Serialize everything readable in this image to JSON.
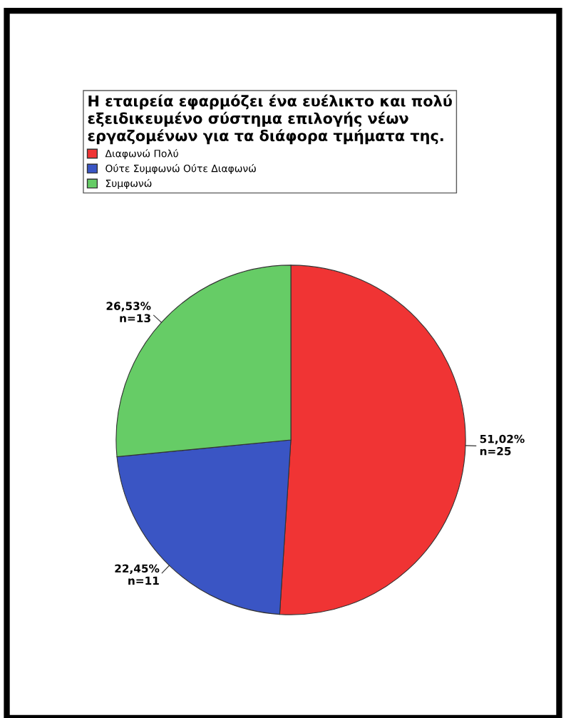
{
  "chart_data": {
    "type": "pie",
    "legend_title": "Η εταιρεία εφαρμόζει ένα ευέλικτο και πολύ\nεξειδικευμένο σύστημα επιλογής νέων\nεργαζομένων για τα διάφορα τμήματα της.",
    "categories": [
      "Διαφωνώ Πολύ",
      "Ούτε Συμφωνώ Ούτε Διαφωνώ",
      "Συμφωνώ"
    ],
    "values": [
      51.02,
      22.45,
      26.53
    ],
    "colors": [
      "#f03434",
      "#3a55c4",
      "#66cc66"
    ],
    "value_labels": [
      "51,02%\nn=25",
      "22,45%\nn=11",
      "26,53%\nn=13"
    ],
    "legend": "top"
  }
}
